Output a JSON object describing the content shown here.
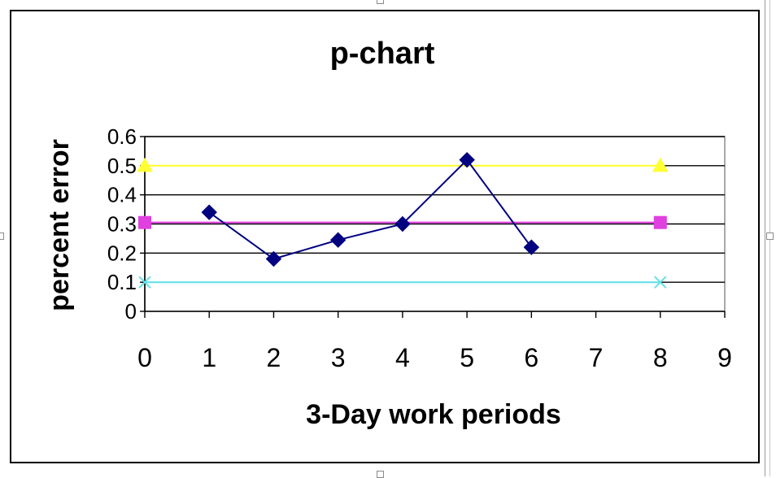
{
  "chart_data": {
    "type": "line",
    "title": "p-chart",
    "xlabel": "3-Day work periods",
    "ylabel": "percent error",
    "xlim": [
      0,
      9
    ],
    "ylim": [
      0,
      0.6
    ],
    "x_ticks": [
      "0",
      "1",
      "2",
      "3",
      "4",
      "5",
      "6",
      "7",
      "8",
      "9"
    ],
    "y_ticks": [
      "0",
      "0.1",
      "0.2",
      "0.3",
      "0.4",
      "0.5",
      "0.6"
    ],
    "grid": true,
    "legend": "none",
    "series": [
      {
        "color": "#000080",
        "marker": "diamond",
        "points": [
          [
            1,
            0.34
          ],
          [
            2,
            0.18
          ],
          [
            3,
            0.245
          ],
          [
            4,
            0.3
          ],
          [
            5,
            0.52
          ],
          [
            6,
            0.22
          ]
        ]
      },
      {
        "color": "#ffff33",
        "marker": "triangle",
        "points": [
          [
            0,
            0.5
          ],
          [
            8,
            0.5
          ]
        ]
      },
      {
        "color": "#e040e0",
        "marker": "square",
        "points": [
          [
            0,
            0.305
          ],
          [
            8,
            0.305
          ]
        ]
      },
      {
        "color": "#66e0e8",
        "marker": "x",
        "points": [
          [
            0,
            0.1
          ],
          [
            8,
            0.1
          ]
        ]
      }
    ]
  }
}
